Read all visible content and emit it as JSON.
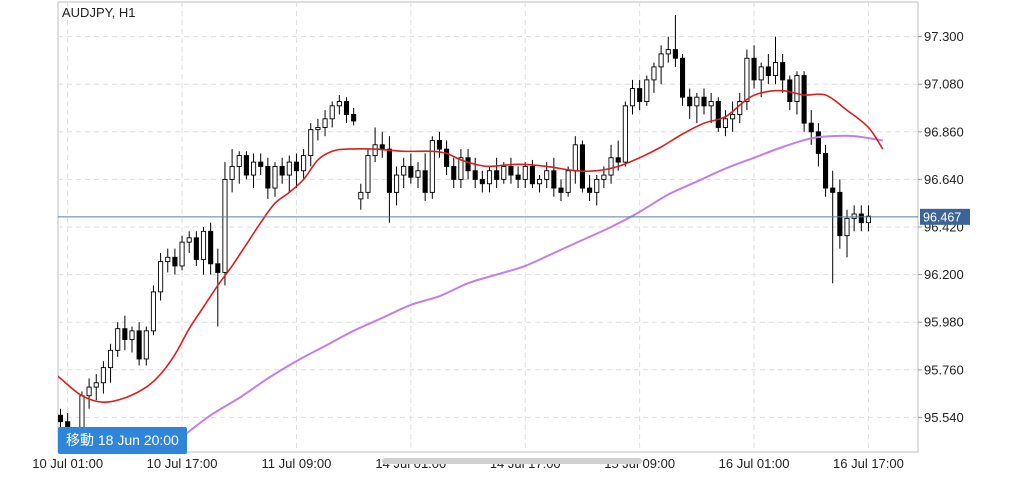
{
  "chart_data": {
    "type": "candlestick",
    "symbol_label": "AUDJPY, H1",
    "ylim": [
      95.38,
      97.46
    ],
    "y_ticks": [
      "97.300",
      "97.080",
      "96.860",
      "96.640",
      "96.420",
      "96.200",
      "95.980",
      "95.760",
      "95.540"
    ],
    "x_labels": [
      {
        "label": "10 Jul 01:00",
        "index": 1
      },
      {
        "label": "10 Jul 17:00",
        "index": 17
      },
      {
        "label": "11 Jul 09:00",
        "index": 33
      },
      {
        "label": "14 Jul 01:00",
        "index": 49
      },
      {
        "label": "14 Jul 17:00",
        "index": 65
      },
      {
        "label": "15 Jul 09:00",
        "index": 81
      },
      {
        "label": "16 Jul 01:00",
        "index": 97
      },
      {
        "label": "16 Jul 17:00",
        "index": 113
      }
    ],
    "current_price": "96.467",
    "current_price_value": 96.467,
    "navigate_label": "移動 18 Jun 20:00",
    "grid": true,
    "colors": {
      "up_candle": "#ffffff",
      "down_candle": "#000000",
      "ma_fast": "#d62020",
      "ma_slow": "#c27fe6",
      "price_line": "#5a7fa8",
      "price_badge": "#3c6496",
      "jump_badge": "#2f86d8"
    },
    "candles": [
      [
        95.55,
        95.58,
        95.45,
        95.52
      ],
      [
        95.52,
        95.56,
        95.4,
        95.42
      ],
      [
        95.4,
        95.46,
        95.33,
        95.44
      ],
      [
        95.46,
        95.66,
        95.43,
        95.64
      ],
      [
        95.64,
        95.72,
        95.58,
        95.68
      ],
      [
        95.68,
        95.74,
        95.62,
        95.7
      ],
      [
        95.7,
        95.8,
        95.65,
        95.77
      ],
      [
        95.77,
        95.88,
        95.7,
        95.85
      ],
      [
        95.85,
        95.98,
        95.82,
        95.95
      ],
      [
        95.95,
        96.01,
        95.85,
        95.9
      ],
      [
        95.9,
        95.96,
        95.84,
        95.94
      ],
      [
        95.94,
        95.98,
        95.78,
        95.81
      ],
      [
        95.81,
        95.96,
        95.78,
        95.94
      ],
      [
        95.94,
        96.15,
        95.92,
        96.12
      ],
      [
        96.12,
        96.3,
        96.08,
        96.26
      ],
      [
        96.26,
        96.32,
        96.21,
        96.28
      ],
      [
        96.28,
        96.32,
        96.2,
        96.24
      ],
      [
        96.24,
        96.38,
        96.22,
        96.35
      ],
      [
        96.35,
        96.4,
        96.3,
        96.37
      ],
      [
        96.37,
        96.4,
        96.24,
        96.27
      ],
      [
        96.27,
        96.42,
        96.2,
        96.4
      ],
      [
        96.4,
        96.44,
        96.2,
        96.25
      ],
      [
        96.25,
        96.32,
        95.96,
        96.21
      ],
      [
        96.21,
        96.72,
        96.15,
        96.64
      ],
      [
        96.64,
        96.78,
        96.58,
        96.7
      ],
      [
        96.7,
        96.77,
        96.62,
        96.75
      ],
      [
        96.75,
        96.77,
        96.64,
        96.66
      ],
      [
        96.66,
        96.76,
        96.6,
        96.72
      ],
      [
        96.72,
        96.76,
        96.66,
        96.7
      ],
      [
        96.7,
        96.74,
        96.55,
        96.6
      ],
      [
        96.6,
        96.72,
        96.56,
        96.7
      ],
      [
        96.7,
        96.74,
        96.62,
        96.66
      ],
      [
        96.66,
        96.75,
        96.58,
        96.72
      ],
      [
        96.72,
        96.76,
        96.6,
        96.68
      ],
      [
        96.68,
        96.78,
        96.64,
        96.75
      ],
      [
        96.75,
        96.9,
        96.7,
        96.87
      ],
      [
        96.87,
        96.92,
        96.82,
        96.88
      ],
      [
        96.88,
        96.96,
        96.84,
        96.92
      ],
      [
        96.92,
        97.0,
        96.88,
        96.98
      ],
      [
        96.98,
        97.03,
        96.94,
        97.0
      ],
      [
        97.0,
        97.02,
        96.9,
        96.94
      ],
      [
        96.94,
        96.97,
        96.89,
        96.91
      ],
      [
        96.55,
        96.62,
        96.5,
        96.58
      ],
      [
        96.58,
        96.78,
        96.55,
        96.75
      ],
      [
        96.75,
        96.88,
        96.72,
        96.8
      ],
      [
        96.8,
        96.86,
        96.74,
        96.78
      ],
      [
        96.78,
        96.84,
        96.44,
        96.58
      ],
      [
        96.58,
        96.7,
        96.52,
        96.66
      ],
      [
        96.66,
        96.74,
        96.6,
        96.7
      ],
      [
        96.7,
        96.76,
        96.62,
        96.65
      ],
      [
        96.65,
        96.72,
        96.6,
        96.68
      ],
      [
        96.68,
        96.76,
        96.54,
        96.58
      ],
      [
        96.58,
        96.84,
        96.55,
        96.82
      ],
      [
        96.82,
        96.86,
        96.74,
        96.78
      ],
      [
        96.78,
        96.82,
        96.66,
        96.7
      ],
      [
        96.7,
        96.74,
        96.6,
        96.64
      ],
      [
        96.64,
        96.78,
        96.6,
        96.74
      ],
      [
        96.74,
        96.78,
        96.64,
        96.68
      ],
      [
        96.68,
        96.74,
        96.6,
        96.64
      ],
      [
        96.64,
        96.68,
        96.58,
        96.62
      ],
      [
        96.62,
        96.7,
        96.58,
        96.68
      ],
      [
        96.68,
        96.74,
        96.6,
        96.64
      ],
      [
        96.64,
        96.72,
        96.62,
        96.7
      ],
      [
        96.7,
        96.74,
        96.62,
        96.66
      ],
      [
        96.66,
        96.7,
        96.6,
        96.64
      ],
      [
        96.64,
        96.72,
        96.6,
        96.7
      ],
      [
        96.7,
        96.73,
        96.6,
        96.62
      ],
      [
        96.62,
        96.66,
        96.58,
        96.64
      ],
      [
        96.64,
        96.72,
        96.6,
        96.68
      ],
      [
        96.68,
        96.74,
        96.56,
        96.6
      ],
      [
        96.6,
        96.64,
        96.54,
        96.58
      ],
      [
        96.58,
        96.7,
        96.56,
        96.68
      ],
      [
        96.68,
        96.84,
        96.62,
        96.8
      ],
      [
        96.8,
        96.82,
        96.58,
        96.6
      ],
      [
        96.6,
        96.66,
        96.54,
        96.58
      ],
      [
        96.58,
        96.66,
        96.52,
        96.64
      ],
      [
        96.64,
        96.7,
        96.6,
        96.66
      ],
      [
        96.66,
        96.8,
        96.62,
        96.74
      ],
      [
        96.74,
        96.82,
        96.68,
        96.72
      ],
      [
        96.72,
        97.0,
        96.7,
        96.98
      ],
      [
        96.98,
        97.1,
        96.94,
        97.06
      ],
      [
        97.06,
        97.1,
        96.96,
        97.0
      ],
      [
        97.0,
        97.12,
        96.98,
        97.1
      ],
      [
        97.1,
        97.18,
        97.04,
        97.16
      ],
      [
        97.16,
        97.26,
        97.08,
        97.22
      ],
      [
        97.22,
        97.3,
        97.18,
        97.24
      ],
      [
        97.24,
        97.4,
        97.16,
        97.2
      ],
      [
        97.2,
        97.22,
        96.98,
        97.02
      ],
      [
        97.02,
        97.06,
        96.92,
        96.98
      ],
      [
        96.98,
        97.04,
        96.9,
        97.02
      ],
      [
        97.02,
        97.06,
        96.94,
        96.98
      ],
      [
        96.98,
        97.04,
        96.9,
        97.0
      ],
      [
        97.0,
        97.02,
        96.86,
        96.88
      ],
      [
        96.88,
        96.96,
        96.84,
        96.92
      ],
      [
        96.92,
        97.0,
        96.86,
        96.94
      ],
      [
        96.94,
        97.04,
        96.9,
        97.0
      ],
      [
        97.0,
        97.24,
        96.96,
        97.2
      ],
      [
        97.2,
        97.26,
        97.06,
        97.1
      ],
      [
        97.1,
        97.18,
        97.02,
        97.16
      ],
      [
        97.16,
        97.22,
        97.08,
        97.12
      ],
      [
        97.12,
        97.3,
        97.08,
        97.18
      ],
      [
        97.18,
        97.22,
        97.04,
        97.1
      ],
      [
        97.1,
        97.12,
        96.96,
        97.0
      ],
      [
        97.0,
        97.14,
        96.94,
        97.12
      ],
      [
        97.12,
        97.14,
        96.86,
        96.9
      ],
      [
        96.9,
        96.96,
        96.8,
        96.86
      ],
      [
        96.86,
        96.9,
        96.7,
        96.76
      ],
      [
        96.76,
        96.8,
        96.56,
        96.6
      ],
      [
        96.6,
        96.68,
        96.16,
        96.58
      ],
      [
        96.58,
        96.64,
        96.32,
        96.38
      ],
      [
        96.38,
        96.5,
        96.28,
        96.46
      ],
      [
        96.46,
        96.52,
        96.4,
        96.48
      ],
      [
        96.48,
        96.52,
        96.4,
        96.44
      ],
      [
        96.44,
        96.52,
        96.4,
        96.47
      ]
    ],
    "ma_fast": [
      [
        -1,
        95.75
      ],
      [
        0,
        95.72
      ],
      [
        3,
        95.64
      ],
      [
        6,
        95.61
      ],
      [
        9,
        95.63
      ],
      [
        12,
        95.68
      ],
      [
        14,
        95.74
      ],
      [
        16,
        95.83
      ],
      [
        18,
        95.95
      ],
      [
        20,
        96.05
      ],
      [
        22,
        96.15
      ],
      [
        24,
        96.24
      ],
      [
        26,
        96.34
      ],
      [
        28,
        96.44
      ],
      [
        30,
        96.53
      ],
      [
        32,
        96.58
      ],
      [
        34,
        96.64
      ],
      [
        36,
        96.73
      ],
      [
        38,
        96.77
      ],
      [
        40,
        96.78
      ],
      [
        44,
        96.78
      ],
      [
        48,
        96.77
      ],
      [
        52,
        96.77
      ],
      [
        54,
        96.76
      ],
      [
        56,
        96.73
      ],
      [
        58,
        96.71
      ],
      [
        60,
        96.7
      ],
      [
        64,
        96.71
      ],
      [
        68,
        96.7
      ],
      [
        72,
        96.68
      ],
      [
        75,
        96.68
      ],
      [
        78,
        96.7
      ],
      [
        81,
        96.74
      ],
      [
        84,
        96.79
      ],
      [
        87,
        96.85
      ],
      [
        90,
        96.9
      ],
      [
        93,
        96.93
      ],
      [
        96,
        97.01
      ],
      [
        98,
        97.04
      ],
      [
        101,
        97.05
      ],
      [
        104,
        97.03
      ],
      [
        107,
        97.03
      ],
      [
        110,
        96.96
      ],
      [
        113,
        96.88
      ],
      [
        115,
        96.78
      ]
    ],
    "ma_slow": [
      [
        13,
        95.35
      ],
      [
        17,
        95.45
      ],
      [
        21,
        95.55
      ],
      [
        25,
        95.63
      ],
      [
        29,
        95.72
      ],
      [
        33,
        95.8
      ],
      [
        37,
        95.87
      ],
      [
        41,
        95.94
      ],
      [
        45,
        96.0
      ],
      [
        49,
        96.06
      ],
      [
        53,
        96.1
      ],
      [
        57,
        96.16
      ],
      [
        61,
        96.2
      ],
      [
        65,
        96.24
      ],
      [
        69,
        96.3
      ],
      [
        73,
        96.36
      ],
      [
        77,
        96.42
      ],
      [
        81,
        96.49
      ],
      [
        85,
        96.57
      ],
      [
        89,
        96.63
      ],
      [
        93,
        96.69
      ],
      [
        97,
        96.74
      ],
      [
        101,
        96.79
      ],
      [
        105,
        96.83
      ],
      [
        108,
        96.84
      ],
      [
        111,
        96.84
      ],
      [
        115,
        96.82
      ]
    ]
  }
}
